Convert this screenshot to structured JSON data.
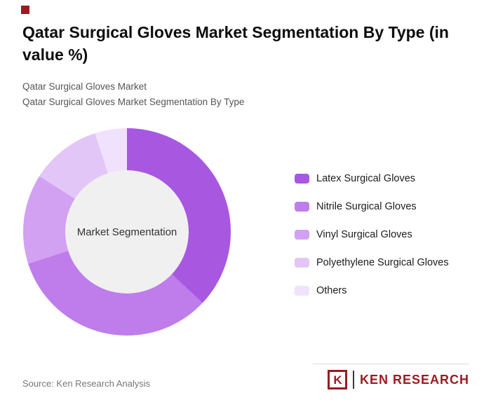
{
  "page": {
    "title": "Qatar Surgical Gloves Market Segmentation By Type (in value %)",
    "subtitle_line1": "Qatar Surgical Gloves Market",
    "subtitle_line2": "Qatar Surgical Gloves Market Segmentation By Type",
    "source": "Source: Ken Research Analysis",
    "brand": {
      "logo_letter": "K",
      "logo_text": "KEN RESEARCH",
      "color": "#9A1B1F"
    }
  },
  "chart_data": {
    "type": "pie",
    "subtype": "donut",
    "title": "Qatar Surgical Gloves Market Segmentation By Type (in value %)",
    "center_label": "Market Segmentation",
    "categories": [
      "Latex Surgical Gloves",
      "Nitrile Surgical Gloves",
      "Vinyl Surgical Gloves",
      "Polyethylene Surgical Gloves",
      "Others"
    ],
    "values": [
      37,
      33,
      14,
      11,
      5
    ],
    "colors": [
      "#A857E0",
      "#BE7DEB",
      "#D2A1F2",
      "#E3C6F8",
      "#F0E2FC"
    ],
    "unit": "value %",
    "start_angle_deg": 0,
    "direction": "clockwise",
    "legend_position": "right",
    "hole_color": "#F0F0F0"
  }
}
